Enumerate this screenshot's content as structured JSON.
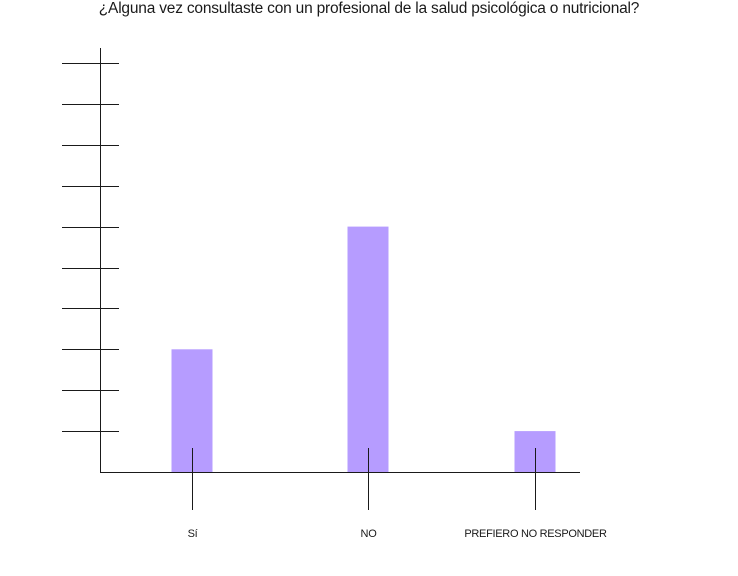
{
  "chart_data": {
    "type": "bar",
    "title": "¿Alguna vez consultaste con un profesional de la salud psicológica o nutricional?",
    "categories": [
      "Sí",
      "NO",
      "PREFIERO NO RESPONDER"
    ],
    "values": [
      3,
      6,
      1
    ],
    "ylim": [
      0,
      10
    ],
    "y_tick_count": 10,
    "xlabel": "",
    "ylabel": "",
    "colors": {
      "bar": "#b69cff",
      "axis": "#1a1a1a"
    }
  }
}
